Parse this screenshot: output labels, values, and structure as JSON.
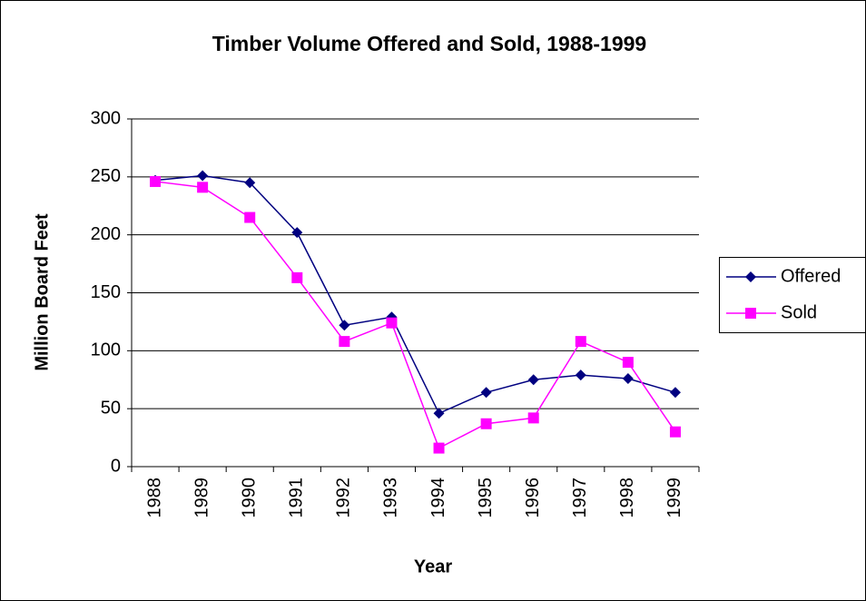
{
  "chart_data": {
    "type": "line",
    "title": "Timber Volume Offered and Sold, 1988-1999",
    "xlabel": "Year",
    "ylabel": "Million Board Feet",
    "categories": [
      "1988",
      "1989",
      "1990",
      "1991",
      "1992",
      "1993",
      "1994",
      "1995",
      "1996",
      "1997",
      "1998",
      "1999"
    ],
    "series": [
      {
        "name": "Offered",
        "color": "#000080",
        "marker": "diamond",
        "values": [
          247,
          251,
          245,
          202,
          122,
          129,
          46,
          64,
          75,
          79,
          76,
          64
        ]
      },
      {
        "name": "Sold",
        "color": "#ff00ff",
        "marker": "square",
        "values": [
          246,
          241,
          215,
          163,
          108,
          124,
          16,
          37,
          42,
          108,
          90,
          30
        ]
      }
    ],
    "ylim": [
      0,
      300
    ],
    "yticks": [
      0,
      50,
      100,
      150,
      200,
      250,
      300
    ],
    "grid": true,
    "legend": "right"
  }
}
